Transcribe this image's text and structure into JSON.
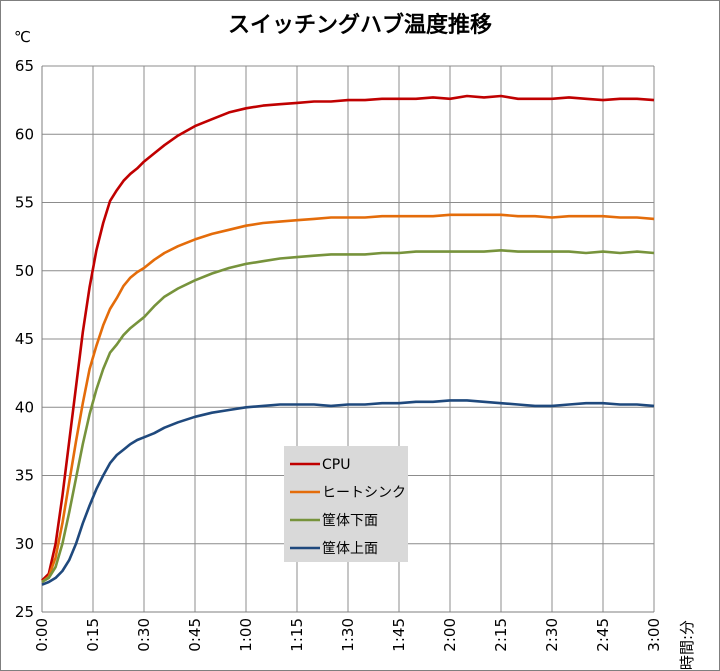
{
  "chart_data": {
    "type": "line",
    "title": "スイッチングハブ温度推移",
    "ylabel": "℃",
    "xlabel": "時間:分",
    "ylim": [
      25,
      65
    ],
    "yticks": [
      25,
      30,
      35,
      40,
      45,
      50,
      55,
      60,
      65
    ],
    "xlim": [
      0,
      180
    ],
    "xticks": [
      0,
      15,
      30,
      45,
      60,
      75,
      90,
      105,
      120,
      135,
      150,
      165,
      180
    ],
    "xtick_labels": [
      "0:00",
      "0:15",
      "0:30",
      "0:45",
      "1:00",
      "1:15",
      "1:30",
      "1:45",
      "2:00",
      "2:15",
      "2:30",
      "2:45",
      "3:00"
    ],
    "grid": true,
    "legend_position": "center-bottom",
    "series": [
      {
        "name": "CPU",
        "color": "#c00000",
        "x": [
          0,
          2,
          4,
          6,
          8,
          10,
          12,
          14,
          16,
          18,
          20,
          22,
          24,
          26,
          28,
          30,
          33,
          36,
          40,
          45,
          50,
          55,
          60,
          65,
          70,
          75,
          80,
          85,
          90,
          95,
          100,
          105,
          110,
          115,
          120,
          125,
          130,
          135,
          140,
          145,
          150,
          155,
          160,
          165,
          170,
          175,
          180
        ],
        "y": [
          27.3,
          27.8,
          30,
          33.5,
          37.5,
          41.5,
          45.5,
          48.8,
          51.5,
          53.5,
          55.1,
          55.9,
          56.6,
          57.1,
          57.5,
          58,
          58.6,
          59.2,
          59.9,
          60.6,
          61.1,
          61.6,
          61.9,
          62.1,
          62.2,
          62.3,
          62.4,
          62.4,
          62.5,
          62.5,
          62.6,
          62.6,
          62.6,
          62.7,
          62.6,
          62.8,
          62.7,
          62.8,
          62.6,
          62.6,
          62.6,
          62.7,
          62.6,
          62.5,
          62.6,
          62.6,
          62.5
        ]
      },
      {
        "name": "ヒートシンク",
        "color": "#e46c0a",
        "x": [
          0,
          2,
          4,
          6,
          8,
          10,
          12,
          14,
          16,
          18,
          20,
          22,
          24,
          26,
          28,
          30,
          33,
          36,
          40,
          45,
          50,
          55,
          60,
          65,
          70,
          75,
          80,
          85,
          90,
          95,
          100,
          105,
          110,
          115,
          120,
          125,
          130,
          135,
          140,
          145,
          150,
          155,
          160,
          165,
          170,
          175,
          180
        ],
        "y": [
          27.2,
          27.6,
          29,
          31.5,
          34.5,
          37.5,
          40.3,
          42.8,
          44.5,
          46,
          47.2,
          48,
          48.9,
          49.5,
          49.9,
          50.2,
          50.8,
          51.3,
          51.8,
          52.3,
          52.7,
          53,
          53.3,
          53.5,
          53.6,
          53.7,
          53.8,
          53.9,
          53.9,
          53.9,
          54,
          54,
          54,
          54,
          54.1,
          54.1,
          54.1,
          54.1,
          54,
          54,
          53.9,
          54,
          54,
          54,
          53.9,
          53.9,
          53.8
        ]
      },
      {
        "name": "筐体下面",
        "color": "#77933c",
        "x": [
          0,
          2,
          4,
          6,
          8,
          10,
          12,
          14,
          16,
          18,
          20,
          22,
          24,
          26,
          28,
          30,
          33,
          36,
          40,
          45,
          50,
          55,
          60,
          65,
          70,
          75,
          80,
          85,
          90,
          95,
          100,
          105,
          110,
          115,
          120,
          125,
          130,
          135,
          140,
          145,
          150,
          155,
          160,
          165,
          170,
          175,
          180
        ],
        "y": [
          27.2,
          27.5,
          28.3,
          30,
          32.3,
          34.8,
          37.3,
          39.5,
          41.3,
          42.8,
          44,
          44.6,
          45.3,
          45.8,
          46.2,
          46.6,
          47.4,
          48.1,
          48.7,
          49.3,
          49.8,
          50.2,
          50.5,
          50.7,
          50.9,
          51,
          51.1,
          51.2,
          51.2,
          51.2,
          51.3,
          51.3,
          51.4,
          51.4,
          51.4,
          51.4,
          51.4,
          51.5,
          51.4,
          51.4,
          51.4,
          51.4,
          51.3,
          51.4,
          51.3,
          51.4,
          51.3
        ]
      },
      {
        "name": "筐体上面",
        "color": "#1f497d",
        "x": [
          0,
          2,
          4,
          6,
          8,
          10,
          12,
          14,
          16,
          18,
          20,
          22,
          24,
          26,
          28,
          30,
          33,
          36,
          40,
          45,
          50,
          55,
          60,
          65,
          70,
          75,
          80,
          85,
          90,
          95,
          100,
          105,
          110,
          115,
          120,
          125,
          130,
          135,
          140,
          145,
          150,
          155,
          160,
          165,
          170,
          175,
          180
        ],
        "y": [
          27,
          27.2,
          27.5,
          28,
          28.8,
          30,
          31.5,
          32.8,
          34,
          35,
          35.9,
          36.5,
          36.9,
          37.3,
          37.6,
          37.8,
          38.1,
          38.5,
          38.9,
          39.3,
          39.6,
          39.8,
          40,
          40.1,
          40.2,
          40.2,
          40.2,
          40.1,
          40.2,
          40.2,
          40.3,
          40.3,
          40.4,
          40.4,
          40.5,
          40.5,
          40.4,
          40.3,
          40.2,
          40.1,
          40.1,
          40.2,
          40.3,
          40.3,
          40.2,
          40.2,
          40.1
        ]
      }
    ]
  }
}
